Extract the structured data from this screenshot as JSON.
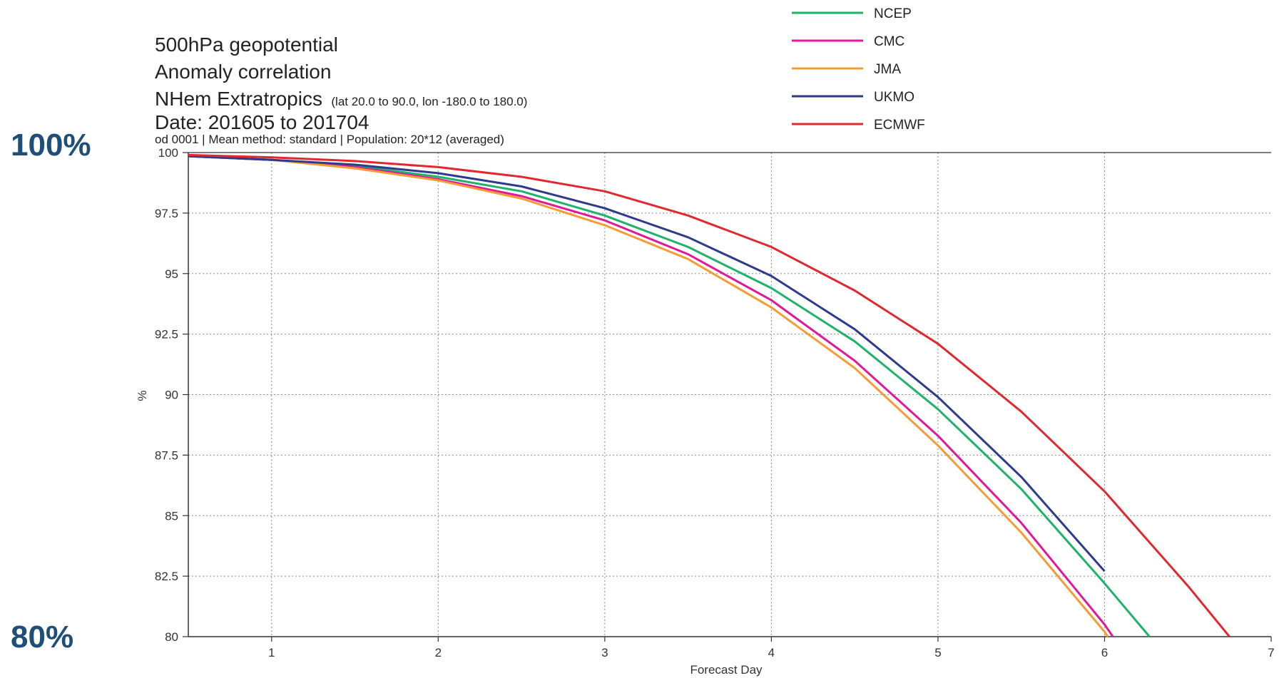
{
  "side_labels": {
    "top": "100%",
    "bottom": "80%"
  },
  "chart_data": {
    "type": "line",
    "title_lines": [
      "500hPa geopotential",
      "Anomaly correlation"
    ],
    "region_name": "NHem Extratropics",
    "region_detail": "(lat 20.0 to 90.0, lon -180.0 to 180.0)",
    "date_line": "Date: 201605 to 201704",
    "info_line": "od 0001 | Mean method: standard | Population: 20*12 (averaged)",
    "xlabel": "Forecast Day",
    "ylabel": "%",
    "xlim": [
      0.5,
      7
    ],
    "ylim": [
      80,
      100
    ],
    "xticks": [
      1,
      2,
      3,
      4,
      5,
      6,
      7
    ],
    "yticks": [
      80,
      82.5,
      85,
      87.5,
      90,
      92.5,
      95,
      97.5,
      100
    ],
    "ytick_labels": [
      "80",
      "82.5",
      "85",
      "87.5",
      "90",
      "92.5",
      "95",
      "97.5",
      "100"
    ],
    "grid": true,
    "legend_position": "top-center",
    "series": [
      {
        "name": "NCEP",
        "color": "#1db36a",
        "x": [
          0.5,
          1,
          1.5,
          2,
          2.5,
          3,
          3.5,
          4,
          4.5,
          5,
          5.5,
          6,
          6.27
        ],
        "y": [
          99.85,
          99.7,
          99.45,
          99.0,
          98.4,
          97.4,
          96.1,
          94.4,
          92.2,
          89.4,
          86.1,
          82.2,
          80.0
        ]
      },
      {
        "name": "CMC",
        "color": "#e0189a",
        "x": [
          0.5,
          1,
          1.5,
          2,
          2.5,
          3,
          3.5,
          4,
          4.5,
          5,
          5.5,
          6,
          6.05
        ],
        "y": [
          99.85,
          99.7,
          99.4,
          98.9,
          98.2,
          97.2,
          95.8,
          93.9,
          91.4,
          88.3,
          84.7,
          80.5,
          80.0
        ]
      },
      {
        "name": "JMA",
        "color": "#f39c34",
        "x": [
          0.5,
          1,
          1.5,
          2,
          2.5,
          3,
          3.5,
          4,
          4.5,
          5,
          5.5,
          6,
          6.02
        ],
        "y": [
          99.85,
          99.7,
          99.35,
          98.85,
          98.1,
          97.0,
          95.6,
          93.6,
          91.1,
          87.9,
          84.3,
          80.2,
          80.0
        ]
      },
      {
        "name": "UKMO",
        "color": "#2e3a8c",
        "x": [
          0.5,
          1,
          1.5,
          2,
          2.5,
          3,
          3.5,
          4,
          4.5,
          5,
          5.5,
          6
        ],
        "y": [
          99.85,
          99.7,
          99.5,
          99.15,
          98.6,
          97.7,
          96.5,
          94.9,
          92.7,
          89.9,
          86.6,
          82.7
        ]
      },
      {
        "name": "ECMWF",
        "color": "#e0282e",
        "x": [
          0.5,
          1,
          1.5,
          2,
          2.5,
          3,
          3.5,
          4,
          4.5,
          5,
          5.5,
          6,
          6.5,
          6.75
        ],
        "y": [
          99.9,
          99.8,
          99.65,
          99.4,
          99.0,
          98.4,
          97.4,
          96.1,
          94.3,
          92.1,
          89.3,
          86.0,
          82.1,
          80.0
        ]
      }
    ]
  }
}
